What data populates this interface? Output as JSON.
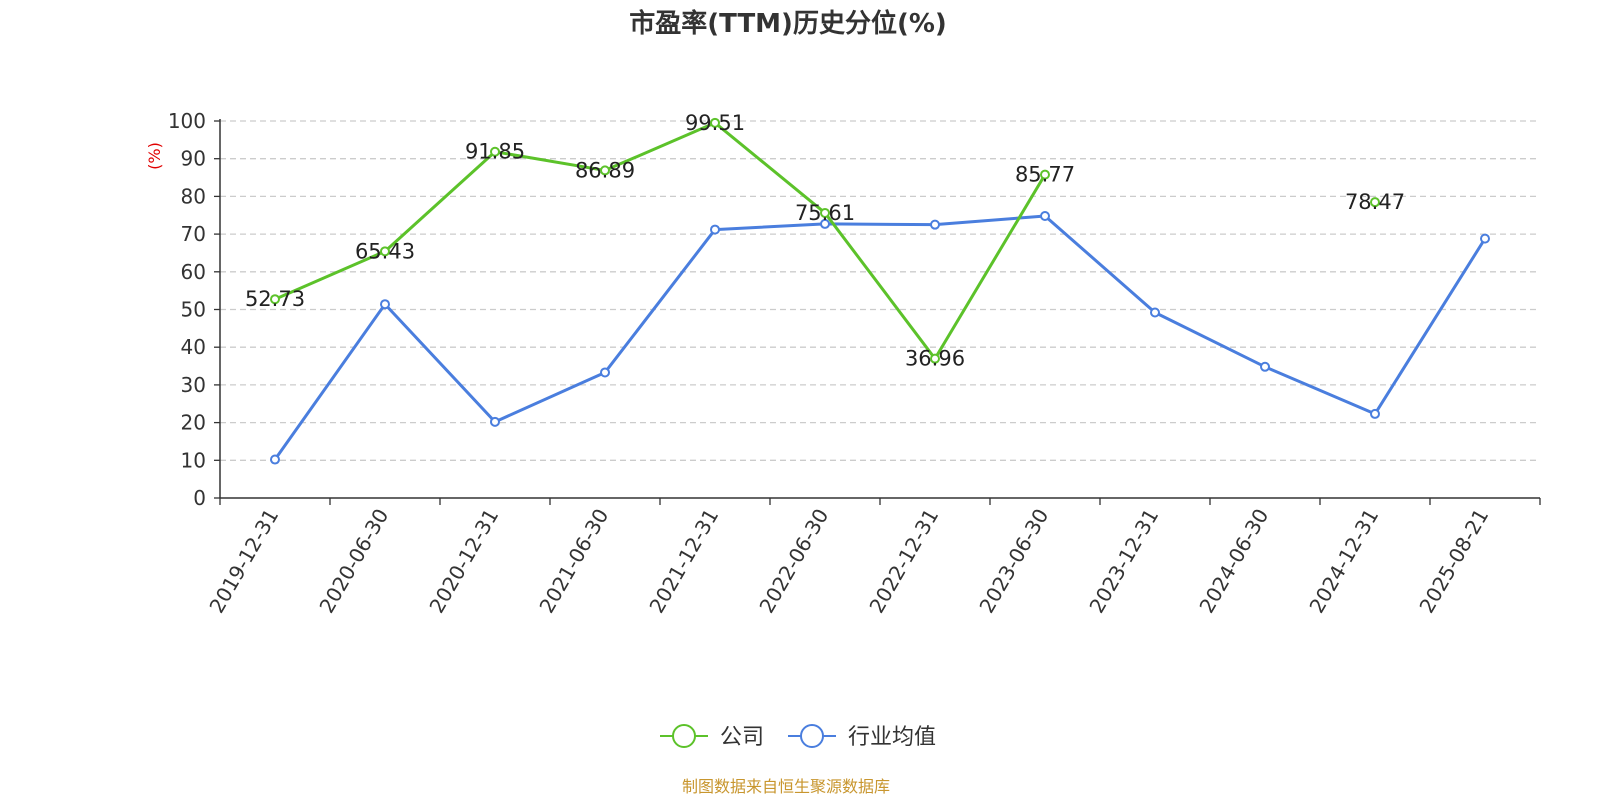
{
  "chart_data": {
    "type": "line",
    "title": "市盈率(TTM)历史分位(%)",
    "ylabel": "(%)",
    "xlabel": "",
    "ylim": [
      0,
      100
    ],
    "yticks": [
      0,
      10,
      20,
      30,
      40,
      50,
      60,
      70,
      80,
      90,
      100
    ],
    "grid": "horizontal-dashed",
    "legend_position": "bottom-center",
    "categories": [
      "2019-12-31",
      "2020-06-30",
      "2020-12-31",
      "2021-06-30",
      "2021-12-31",
      "2022-06-30",
      "2022-12-31",
      "2023-06-30",
      "2023-12-31",
      "2024-06-30",
      "2024-12-31",
      "2025-08-21"
    ],
    "series": [
      {
        "name": "公司",
        "color": "#5cc22a",
        "values": [
          52.73,
          65.43,
          91.85,
          86.89,
          99.51,
          75.61,
          36.96,
          85.77,
          null,
          null,
          78.47,
          null
        ],
        "show_labels": true
      },
      {
        "name": "行业均值",
        "color": "#4a7ede",
        "values": [
          10.2,
          51.4,
          20.2,
          33.3,
          71.2,
          72.7,
          72.5,
          74.8,
          49.2,
          34.8,
          22.3,
          68.8
        ],
        "show_labels": false
      }
    ],
    "source": "制图数据来自恒生聚源数据库"
  }
}
